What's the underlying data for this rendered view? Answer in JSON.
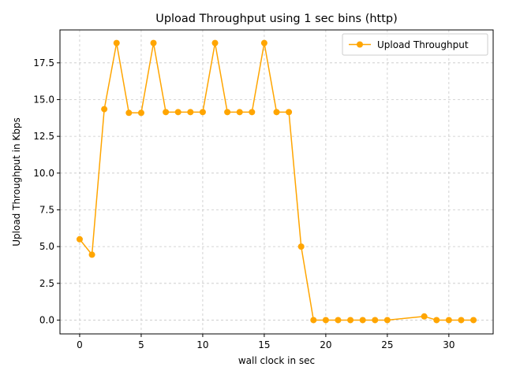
{
  "chart_data": {
    "type": "line",
    "title": "Upload Throughput using 1 sec bins (http)",
    "xlabel": "wall clock in sec",
    "ylabel": "Upload Throughput in Kbps",
    "xlim": [
      -1.6,
      33.6
    ],
    "ylim": [
      -0.94,
      19.74
    ],
    "xticks": [
      0,
      5,
      10,
      15,
      20,
      25,
      30
    ],
    "yticks": [
      0.0,
      2.5,
      5.0,
      7.5,
      10.0,
      12.5,
      15.0,
      17.5
    ],
    "xtick_labels": [
      "0",
      "5",
      "10",
      "15",
      "20",
      "25",
      "30"
    ],
    "ytick_labels": [
      "0.0",
      "2.5",
      "5.0",
      "7.5",
      "10.0",
      "12.5",
      "15.0",
      "17.5"
    ],
    "grid": true,
    "legend_position": "top-right",
    "series": [
      {
        "name": "Upload Throughput",
        "color": "#FFA500",
        "marker": "circle",
        "x": [
          0,
          1,
          2,
          3,
          4,
          5,
          6,
          7,
          8,
          9,
          10,
          11,
          12,
          13,
          14,
          15,
          16,
          17,
          18,
          19,
          20,
          21,
          22,
          23,
          24,
          25,
          28,
          29,
          30,
          31,
          32
        ],
        "y": [
          5.5,
          4.45,
          14.35,
          18.85,
          14.1,
          14.1,
          18.85,
          14.15,
          14.15,
          14.15,
          14.15,
          18.85,
          14.15,
          14.15,
          14.15,
          18.85,
          14.15,
          14.15,
          5.0,
          0.0,
          0.0,
          0.0,
          0.0,
          0.0,
          0.0,
          0.0,
          0.25,
          0.0,
          0.0,
          0.0,
          0.0
        ]
      }
    ]
  }
}
